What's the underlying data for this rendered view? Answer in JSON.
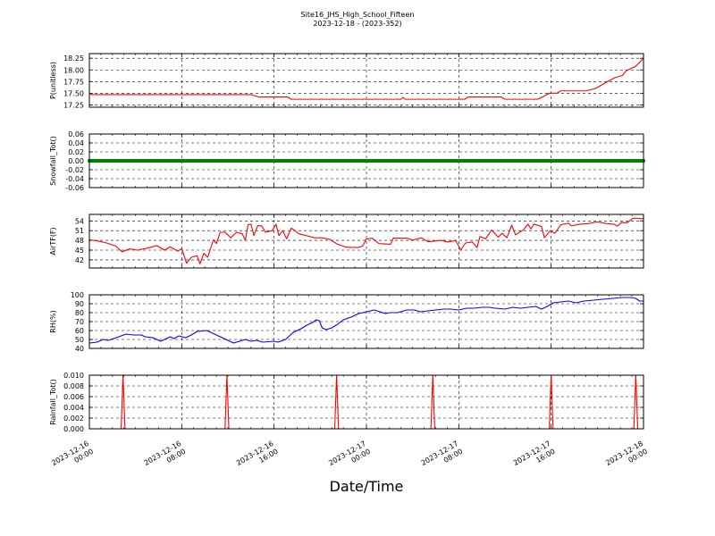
{
  "title_line1": "Site16_JHS_High_School_Fifteen",
  "title_line2": "2023-12-18 - (2023-352)",
  "xlabel": "Date/Time",
  "x_ticks": [
    {
      "x": "2023-12-16T00:00",
      "line1": "2023-12-16",
      "line2": "00:00"
    },
    {
      "x": "2023-12-16T08:00",
      "line1": "2023-12-16",
      "line2": "08:00"
    },
    {
      "x": "2023-12-16T16:00",
      "line1": "2023-12-16",
      "line2": "16:00"
    },
    {
      "x": "2023-12-17T00:00",
      "line1": "2023-12-17",
      "line2": "00:00"
    },
    {
      "x": "2023-12-17T08:00",
      "line1": "2023-12-17",
      "line2": "08:00"
    },
    {
      "x": "2023-12-17T16:00",
      "line1": "2023-12-17",
      "line2": "16:00"
    },
    {
      "x": "2023-12-18T00:00",
      "line1": "2023-12-18",
      "line2": "00:00"
    }
  ],
  "chart_data": [
    {
      "type": "line",
      "ylabel": "P(unitless)",
      "xlim": [
        "2023-12-16T00:00",
        "2023-12-18T00:00"
      ],
      "ylim": [
        17.2,
        18.35
      ],
      "yticks": [
        17.25,
        17.5,
        17.75,
        18.0,
        18.25
      ],
      "ytick_labels": [
        "17.25",
        "17.50",
        "17.75",
        "18.00",
        "18.25"
      ],
      "color": "#ff0000",
      "grid": true,
      "points": [
        [
          "2023-12-16T00:00",
          17.5
        ],
        [
          "2023-12-16T00:10",
          17.47
        ],
        [
          "2023-12-16T03:00",
          17.47
        ],
        [
          "2023-12-16T06:00",
          17.47
        ],
        [
          "2023-12-16T09:00",
          17.47
        ],
        [
          "2023-12-16T12:00",
          17.47
        ],
        [
          "2023-12-16T14:00",
          17.47
        ],
        [
          "2023-12-16T14:40",
          17.42
        ],
        [
          "2023-12-16T17:10",
          17.42
        ],
        [
          "2023-12-16T17:30",
          17.37
        ],
        [
          "2023-12-16T20:00",
          17.37
        ],
        [
          "2023-12-17T00:00",
          17.37
        ],
        [
          "2023-12-17T03:00",
          17.37
        ],
        [
          "2023-12-17T03:10",
          17.41
        ],
        [
          "2023-12-17T03:20",
          17.37
        ],
        [
          "2023-12-17T06:00",
          17.37
        ],
        [
          "2023-12-17T08:30",
          17.37
        ],
        [
          "2023-12-17T08:50",
          17.42
        ],
        [
          "2023-12-17T11:40",
          17.42
        ],
        [
          "2023-12-17T12:00",
          17.37
        ],
        [
          "2023-12-17T14:50",
          17.37
        ],
        [
          "2023-12-17T15:20",
          17.43
        ],
        [
          "2023-12-17T15:50",
          17.5
        ],
        [
          "2023-12-17T16:30",
          17.5
        ],
        [
          "2023-12-17T16:50",
          17.55
        ],
        [
          "2023-12-17T19:00",
          17.55
        ],
        [
          "2023-12-17T19:50",
          17.6
        ],
        [
          "2023-12-17T20:40",
          17.72
        ],
        [
          "2023-12-17T21:30",
          17.83
        ],
        [
          "2023-12-17T22:10",
          17.88
        ],
        [
          "2023-12-17T22:30",
          17.98
        ],
        [
          "2023-12-17T23:20",
          18.08
        ],
        [
          "2023-12-18T00:00",
          18.25
        ]
      ]
    },
    {
      "type": "line",
      "ylabel": "Snowfall_Tot()",
      "xlim": [
        "2023-12-16T00:00",
        "2023-12-18T00:00"
      ],
      "ylim": [
        -0.06,
        0.06
      ],
      "yticks": [
        -0.06,
        -0.04,
        -0.02,
        0.0,
        0.02,
        0.04,
        0.06
      ],
      "ytick_labels": [
        "-0.06",
        "-0.04",
        "-0.02",
        "0.00",
        "0.02",
        "0.04",
        "0.06"
      ],
      "color": "#008000",
      "marker": "dot",
      "grid": true,
      "points": [
        [
          "2023-12-16T00:00",
          0.0
        ],
        [
          "2023-12-18T00:00",
          0.0
        ]
      ]
    },
    {
      "type": "line",
      "ylabel": "AirTF(F)",
      "xlim": [
        "2023-12-16T00:00",
        "2023-12-18T00:00"
      ],
      "ylim": [
        39.5,
        56
      ],
      "yticks": [
        42,
        45,
        48,
        51,
        54
      ],
      "ytick_labels": [
        "42",
        "45",
        "48",
        "51",
        "54"
      ],
      "color": "#ff0000",
      "grid": true,
      "points": [
        [
          "2023-12-16T00:00",
          48.2
        ],
        [
          "2023-12-16T00:45",
          47.8
        ],
        [
          "2023-12-16T01:30",
          47.2
        ],
        [
          "2023-12-16T02:15",
          46.3
        ],
        [
          "2023-12-16T02:50",
          44.5
        ],
        [
          "2023-12-16T03:30",
          45.4
        ],
        [
          "2023-12-16T04:10",
          45.0
        ],
        [
          "2023-12-16T05:00",
          45.6
        ],
        [
          "2023-12-16T05:50",
          46.4
        ],
        [
          "2023-12-16T06:30",
          45.0
        ],
        [
          "2023-12-16T07:00",
          46.0
        ],
        [
          "2023-12-16T07:40",
          44.7
        ],
        [
          "2023-12-16T08:00",
          45.5
        ],
        [
          "2023-12-16T08:25",
          41.0
        ],
        [
          "2023-12-16T08:50",
          42.8
        ],
        [
          "2023-12-16T09:20",
          43.3
        ],
        [
          "2023-12-16T09:35",
          40.8
        ],
        [
          "2023-12-16T09:55",
          44.0
        ],
        [
          "2023-12-16T10:15",
          42.8
        ],
        [
          "2023-12-16T10:45",
          48.2
        ],
        [
          "2023-12-16T11:00",
          47.0
        ],
        [
          "2023-12-16T11:20",
          50.5
        ],
        [
          "2023-12-16T11:45",
          50.5
        ],
        [
          "2023-12-16T12:15",
          48.8
        ],
        [
          "2023-12-16T12:45",
          50.5
        ],
        [
          "2023-12-16T13:15",
          50.0
        ],
        [
          "2023-12-16T13:30",
          48.0
        ],
        [
          "2023-12-16T13:45",
          52.8
        ],
        [
          "2023-12-16T14:00",
          53.0
        ],
        [
          "2023-12-16T14:15",
          49.5
        ],
        [
          "2023-12-16T14:35",
          52.5
        ],
        [
          "2023-12-16T14:55",
          52.5
        ],
        [
          "2023-12-16T15:15",
          50.5
        ],
        [
          "2023-12-16T15:50",
          51.0
        ],
        [
          "2023-12-16T16:10",
          53.0
        ],
        [
          "2023-12-16T16:25",
          49.5
        ],
        [
          "2023-12-16T16:45",
          51.0
        ],
        [
          "2023-12-16T17:05",
          48.5
        ],
        [
          "2023-12-16T17:30",
          51.8
        ],
        [
          "2023-12-16T18:10",
          50.0
        ],
        [
          "2023-12-16T18:45",
          49.5
        ],
        [
          "2023-12-16T19:30",
          48.8
        ],
        [
          "2023-12-16T20:10",
          48.8
        ],
        [
          "2023-12-16T20:50",
          48.3
        ],
        [
          "2023-12-16T21:30",
          46.8
        ],
        [
          "2023-12-16T22:15",
          45.9
        ],
        [
          "2023-12-16T23:15",
          45.8
        ],
        [
          "2023-12-16T23:40",
          46.2
        ],
        [
          "2023-12-17T00:00",
          48.4
        ],
        [
          "2023-12-17T00:30",
          48.7
        ],
        [
          "2023-12-17T01:05",
          47.0
        ],
        [
          "2023-12-17T02:05",
          46.8
        ],
        [
          "2023-12-17T02:20",
          48.7
        ],
        [
          "2023-12-17T03:30",
          48.7
        ],
        [
          "2023-12-17T04:00",
          48.1
        ],
        [
          "2023-12-17T04:45",
          48.8
        ],
        [
          "2023-12-17T05:20",
          47.6
        ],
        [
          "2023-12-17T06:30",
          48.0
        ],
        [
          "2023-12-17T07:00",
          47.5
        ],
        [
          "2023-12-17T07:45",
          47.9
        ],
        [
          "2023-12-17T08:10",
          45.0
        ],
        [
          "2023-12-17T08:35",
          47.2
        ],
        [
          "2023-12-17T09:10",
          47.5
        ],
        [
          "2023-12-17T09:35",
          45.8
        ],
        [
          "2023-12-17T09:50",
          49.2
        ],
        [
          "2023-12-17T10:20",
          48.5
        ],
        [
          "2023-12-17T10:50",
          51.2
        ],
        [
          "2023-12-17T11:25",
          49.0
        ],
        [
          "2023-12-17T11:45",
          50.2
        ],
        [
          "2023-12-17T12:10",
          48.8
        ],
        [
          "2023-12-17T12:35",
          52.7
        ],
        [
          "2023-12-17T12:55",
          49.7
        ],
        [
          "2023-12-17T13:35",
          51.2
        ],
        [
          "2023-12-17T14:00",
          53.0
        ],
        [
          "2023-12-17T14:15",
          51.5
        ],
        [
          "2023-12-17T14:30",
          53.0
        ],
        [
          "2023-12-17T15:10",
          52.3
        ],
        [
          "2023-12-17T15:25",
          48.8
        ],
        [
          "2023-12-17T15:55",
          51.0
        ],
        [
          "2023-12-17T16:20",
          50.2
        ],
        [
          "2023-12-17T16:50",
          52.8
        ],
        [
          "2023-12-17T17:30",
          53.3
        ],
        [
          "2023-12-17T17:45",
          52.5
        ],
        [
          "2023-12-17T18:30",
          53.0
        ],
        [
          "2023-12-17T19:15",
          53.2
        ],
        [
          "2023-12-17T20:00",
          53.7
        ],
        [
          "2023-12-17T20:45",
          53.2
        ],
        [
          "2023-12-17T21:25",
          53.0
        ],
        [
          "2023-12-17T21:45",
          52.4
        ],
        [
          "2023-12-17T22:05",
          53.5
        ],
        [
          "2023-12-17T22:35",
          53.4
        ],
        [
          "2023-12-17T23:05",
          54.8
        ],
        [
          "2023-12-17T23:30",
          54.8
        ],
        [
          "2023-12-18T00:00",
          54.6
        ]
      ]
    },
    {
      "type": "line",
      "ylabel": "RH(%)",
      "xlim": [
        "2023-12-16T00:00",
        "2023-12-18T00:00"
      ],
      "ylim": [
        40,
        100
      ],
      "yticks": [
        40,
        50,
        60,
        70,
        80,
        90,
        100
      ],
      "ytick_labels": [
        "40",
        "50",
        "60",
        "70",
        "80",
        "90",
        "100"
      ],
      "color": "#0000ff",
      "grid": true,
      "points": [
        [
          "2023-12-16T00:00",
          46
        ],
        [
          "2023-12-16T00:40",
          47
        ],
        [
          "2023-12-16T01:10",
          50
        ],
        [
          "2023-12-16T01:40",
          49
        ],
        [
          "2023-12-16T02:20",
          52
        ],
        [
          "2023-12-16T03:10",
          56
        ],
        [
          "2023-12-16T03:50",
          55
        ],
        [
          "2023-12-16T04:30",
          55
        ],
        [
          "2023-12-16T04:50",
          53
        ],
        [
          "2023-12-16T05:30",
          52
        ],
        [
          "2023-12-16T06:10",
          48
        ],
        [
          "2023-12-16T06:40",
          51
        ],
        [
          "2023-12-16T07:00",
          53
        ],
        [
          "2023-12-16T07:20",
          51
        ],
        [
          "2023-12-16T07:45",
          54
        ],
        [
          "2023-12-16T08:20",
          52
        ],
        [
          "2023-12-16T08:50",
          55
        ],
        [
          "2023-12-16T09:20",
          59
        ],
        [
          "2023-12-16T10:10",
          60
        ],
        [
          "2023-12-16T10:50",
          56
        ],
        [
          "2023-12-16T11:20",
          53
        ],
        [
          "2023-12-16T12:00",
          49
        ],
        [
          "2023-12-16T12:30",
          46
        ],
        [
          "2023-12-16T13:00",
          48
        ],
        [
          "2023-12-16T13:30",
          50
        ],
        [
          "2023-12-16T14:00",
          48
        ],
        [
          "2023-12-16T14:30",
          49
        ],
        [
          "2023-12-16T15:00",
          47
        ],
        [
          "2023-12-16T16:00",
          48
        ],
        [
          "2023-12-16T16:20",
          47
        ],
        [
          "2023-12-16T17:00",
          50
        ],
        [
          "2023-12-16T17:40",
          58
        ],
        [
          "2023-12-16T18:20",
          62
        ],
        [
          "2023-12-16T18:50",
          66
        ],
        [
          "2023-12-16T19:20",
          69
        ],
        [
          "2023-12-16T19:40",
          72
        ],
        [
          "2023-12-16T19:55",
          71
        ],
        [
          "2023-12-16T20:10",
          63
        ],
        [
          "2023-12-16T20:30",
          61
        ],
        [
          "2023-12-16T21:00",
          63
        ],
        [
          "2023-12-16T21:30",
          67
        ],
        [
          "2023-12-16T22:00",
          72
        ],
        [
          "2023-12-16T22:40",
          75
        ],
        [
          "2023-12-16T23:20",
          79
        ],
        [
          "2023-12-17T00:00",
          81
        ],
        [
          "2023-12-17T00:40",
          83
        ],
        [
          "2023-12-17T01:10",
          81
        ],
        [
          "2023-12-17T01:40",
          79
        ],
        [
          "2023-12-17T02:00",
          80
        ],
        [
          "2023-12-17T02:40",
          80
        ],
        [
          "2023-12-17T03:30",
          83
        ],
        [
          "2023-12-17T04:10",
          83
        ],
        [
          "2023-12-17T04:40",
          81
        ],
        [
          "2023-12-17T05:20",
          82
        ],
        [
          "2023-12-17T06:00",
          83
        ],
        [
          "2023-12-17T06:40",
          84
        ],
        [
          "2023-12-17T07:20",
          84
        ],
        [
          "2023-12-17T08:00",
          83
        ],
        [
          "2023-12-17T08:40",
          85
        ],
        [
          "2023-12-17T09:20",
          85
        ],
        [
          "2023-12-17T10:00",
          86
        ],
        [
          "2023-12-17T10:40",
          86
        ],
        [
          "2023-12-17T11:10",
          85
        ],
        [
          "2023-12-17T12:00",
          84
        ],
        [
          "2023-12-17T12:40",
          86
        ],
        [
          "2023-12-17T13:20",
          85
        ],
        [
          "2023-12-17T14:00",
          86
        ],
        [
          "2023-12-17T14:40",
          87
        ],
        [
          "2023-12-17T15:10",
          84
        ],
        [
          "2023-12-17T15:40",
          87
        ],
        [
          "2023-12-17T16:10",
          91
        ],
        [
          "2023-12-17T16:50",
          92
        ],
        [
          "2023-12-17T17:30",
          93
        ],
        [
          "2023-12-17T18:10",
          91
        ],
        [
          "2023-12-17T18:50",
          93
        ],
        [
          "2023-12-17T19:40",
          94
        ],
        [
          "2023-12-17T20:30",
          95
        ],
        [
          "2023-12-17T21:20",
          96
        ],
        [
          "2023-12-17T22:10",
          97
        ],
        [
          "2023-12-17T22:50",
          97
        ],
        [
          "2023-12-17T23:20",
          96
        ],
        [
          "2023-12-17T23:40",
          93
        ],
        [
          "2023-12-18T00:00",
          93
        ]
      ]
    },
    {
      "type": "line",
      "ylabel": "Rainfall_Tot()",
      "xlim": [
        "2023-12-16T00:00",
        "2023-12-18T00:00"
      ],
      "ylim": [
        0.0,
        0.01
      ],
      "yticks": [
        0.0,
        0.002,
        0.004,
        0.006,
        0.008,
        0.01
      ],
      "ytick_labels": [
        "0.000",
        "0.002",
        "0.004",
        "0.006",
        "0.008",
        "0.010"
      ],
      "color": "#ff0000",
      "grid": true,
      "points": [
        [
          "2023-12-16T00:00",
          0
        ],
        [
          "2023-12-16T02:45",
          0
        ],
        [
          "2023-12-16T02:55",
          0.01
        ],
        [
          "2023-12-16T03:05",
          0
        ],
        [
          "2023-12-16T11:45",
          0
        ],
        [
          "2023-12-16T11:55",
          0.01
        ],
        [
          "2023-12-16T12:05",
          0
        ],
        [
          "2023-12-16T21:15",
          0
        ],
        [
          "2023-12-16T21:25",
          0.01
        ],
        [
          "2023-12-16T21:35",
          0
        ],
        [
          "2023-12-17T05:35",
          0
        ],
        [
          "2023-12-17T05:45",
          0.01
        ],
        [
          "2023-12-17T05:55",
          0
        ],
        [
          "2023-12-17T15:50",
          0
        ],
        [
          "2023-12-17T16:00",
          0.01
        ],
        [
          "2023-12-17T16:10",
          0
        ],
        [
          "2023-12-17T23:10",
          0
        ],
        [
          "2023-12-17T23:20",
          0.01
        ],
        [
          "2023-12-17T23:30",
          0
        ],
        [
          "2023-12-18T00:00",
          0
        ]
      ]
    }
  ]
}
